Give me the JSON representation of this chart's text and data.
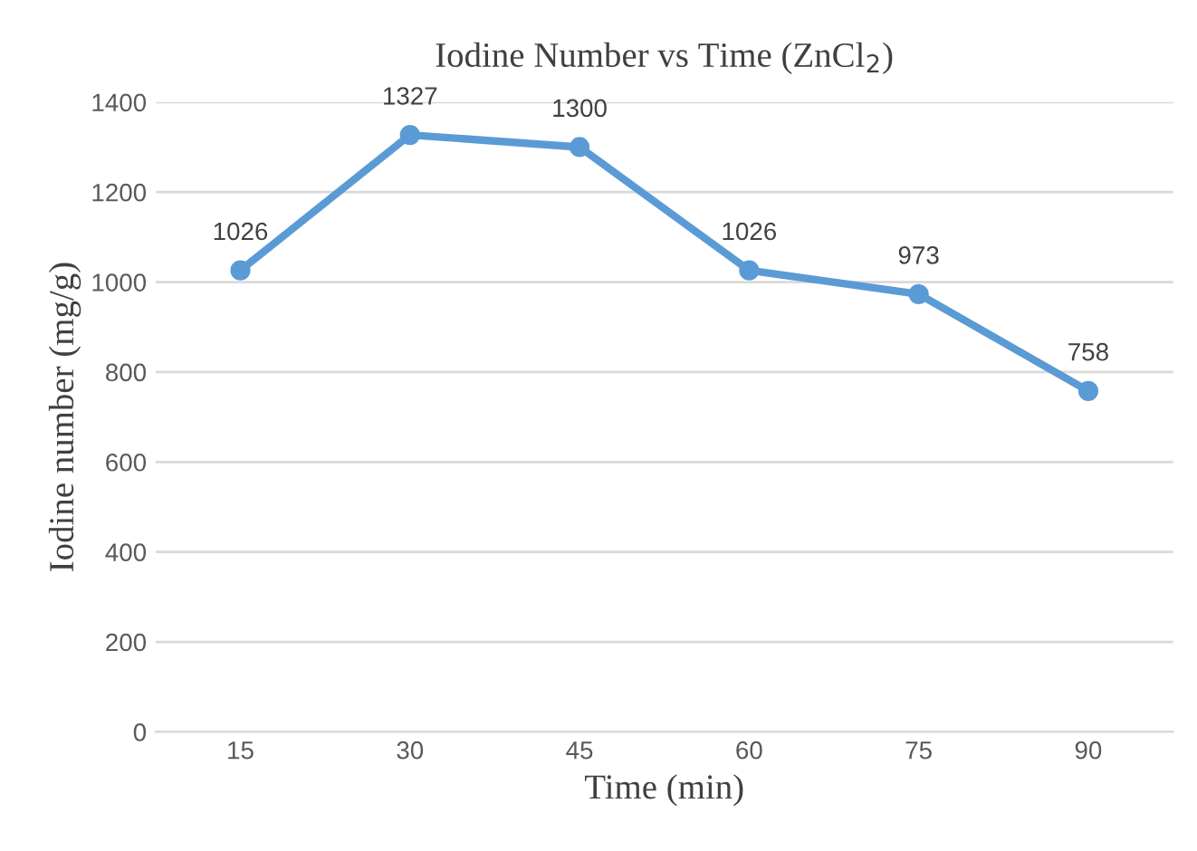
{
  "chart_data": {
    "type": "line",
    "title": "Iodine Number vs Time (ZnCl$_{2}$)",
    "xlabel": "Time (min)",
    "ylabel": "Iodine number (mg/g)",
    "categories": [
      "15",
      "30",
      "45",
      "60",
      "75",
      "90"
    ],
    "series": [
      {
        "color": "#5b9bd5",
        "values": [
          1026,
          1327,
          1300,
          1026,
          973,
          758
        ]
      }
    ],
    "ylim": [
      0,
      1400
    ],
    "yticks": [
      0,
      200,
      400,
      600,
      800,
      1000,
      1200,
      1400
    ],
    "grid": "y",
    "marker": "circle",
    "line_style": "solid",
    "data_labels": true
  }
}
